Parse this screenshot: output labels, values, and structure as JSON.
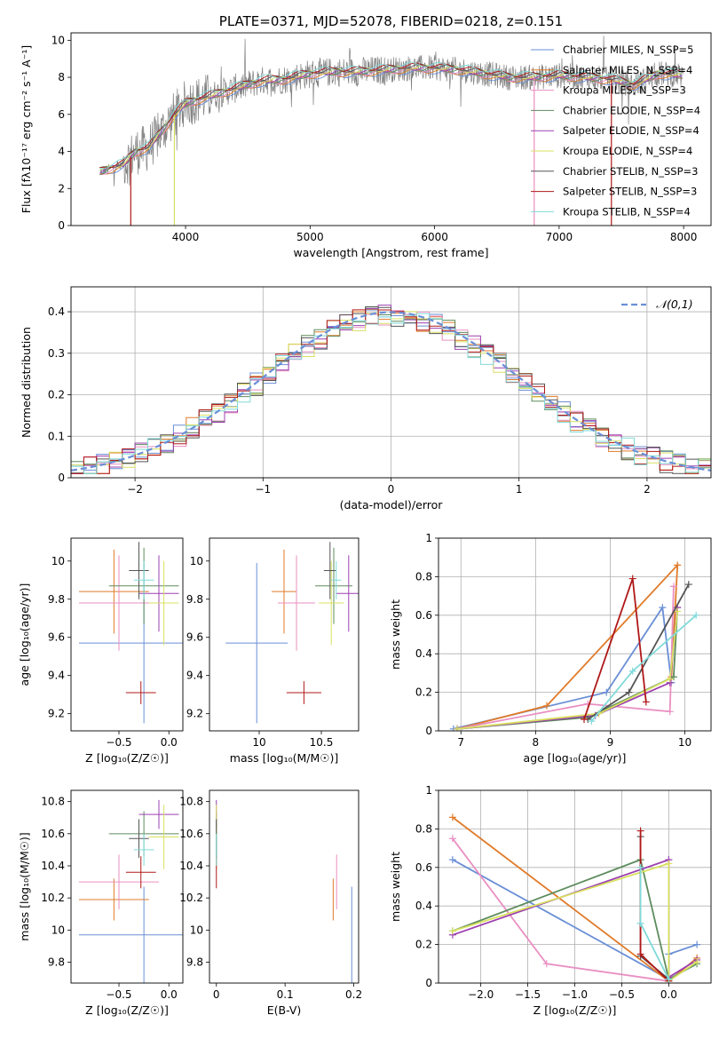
{
  "colors": {
    "chabrier_miles": "#6a8fd6",
    "salpeter_miles": "#e07b2a",
    "kroupa_miles": "#e98fc2",
    "chabrier_elodie": "#5e8c5e",
    "salpeter_elodie": "#9c40b0",
    "kroupa_elodie": "#d8e060",
    "chabrier_stelib": "#555555",
    "salpeter_stelib": "#b01818",
    "kroupa_stelib": "#80dada",
    "data_gray": "#808080",
    "normal_curve": "#6a8fd6"
  },
  "chart_data": [
    {
      "id": "spectrum",
      "type": "line",
      "title": "PLATE=0371, MJD=52078, FIBERID=0218, z=0.151",
      "xlabel": "wavelength [Angstrom, rest frame]",
      "ylabel": "Flux [fλ10⁻¹⁷ erg cm⁻² s⁻¹ A⁻¹]",
      "xlim": [
        3080,
        8220
      ],
      "ylim": [
        0,
        10.4
      ],
      "xticks": [
        4000,
        5000,
        6000,
        7000,
        8000
      ],
      "yticks": [
        0,
        2,
        4,
        6,
        8,
        10
      ],
      "legend_position": "top-right",
      "legend": [
        "Chabrier MILES, N_SSP=5",
        "Salpeter MILES, N_SSP=4",
        "Kroupa MILES, N_SSP=3",
        "Chabrier ELODIE, N_SSP=4",
        "Salpeter ELODIE, N_SSP=4",
        "Kroupa ELODIE, N_SSP=4",
        "Chabrier STELIB, N_SSP=3",
        "Salpeter STELIB, N_SSP=3",
        "Kroupa STELIB, N_SSP=4"
      ],
      "continuum": {
        "wavelength": [
          3310,
          3400,
          3500,
          3600,
          3700,
          3800,
          3900,
          4000,
          4200,
          4400,
          4600,
          4800,
          5000,
          5200,
          5400,
          5600,
          5800,
          6000,
          6200,
          6400,
          6600,
          6800,
          7000,
          7200,
          7400,
          7600,
          7800,
          8000
        ],
        "flux": [
          2.9,
          3.1,
          3.3,
          4.0,
          4.2,
          5.0,
          5.9,
          6.6,
          7.0,
          7.4,
          7.8,
          7.9,
          8.2,
          8.3,
          8.3,
          8.4,
          8.5,
          8.5,
          8.4,
          8.2,
          8.0,
          8.0,
          8.1,
          8.0,
          7.9,
          7.6,
          8.2,
          8.1
        ]
      },
      "dropouts": [
        {
          "wavelength": 3560,
          "series": "salpeter_stelib"
        },
        {
          "wavelength": 3910,
          "series": "kroupa_elodie"
        },
        {
          "wavelength": 6800,
          "series": "kroupa_miles"
        },
        {
          "wavelength": 7420,
          "series": "salpeter_stelib"
        }
      ]
    },
    {
      "id": "residuals",
      "type": "histogram",
      "xlabel": "(data-model)/error",
      "ylabel": "Normed distribution",
      "xlim": [
        -2.5,
        2.5
      ],
      "ylim": [
        0,
        0.46
      ],
      "xticks": [
        -2,
        -1,
        0,
        1,
        2
      ],
      "yticks": [
        0.0,
        0.1,
        0.2,
        0.3,
        0.4
      ],
      "legend": [
        "𝒩(0,1)"
      ],
      "legend_position": "top-right",
      "grid": true,
      "normal": {
        "mean": 0,
        "sigma": 1
      }
    },
    {
      "id": "age_vs_Z",
      "type": "errorbar",
      "xlabel": "Z [log₁₀(Z/Z☉)]",
      "ylabel": "age  [log₁₀(age/yr)]",
      "xlim": [
        -0.98,
        0.14
      ],
      "ylim": [
        9.11,
        10.12
      ],
      "xticks": [
        -0.5,
        0.0
      ],
      "xticklabels": [
        "−0.5",
        "0.0"
      ],
      "yticks": [
        9.2,
        9.4,
        9.6,
        9.8,
        10.0
      ],
      "points": [
        {
          "series": "chabrier_miles",
          "x": -0.25,
          "xerr": 0.65,
          "y": 9.57,
          "yerr": 0.42
        },
        {
          "series": "salpeter_miles",
          "x": -0.55,
          "xerr": 0.35,
          "y": 9.84,
          "yerr": 0.22
        },
        {
          "series": "kroupa_miles",
          "x": -0.5,
          "xerr": 0.4,
          "y": 9.78,
          "yerr": 0.25
        },
        {
          "series": "chabrier_elodie",
          "x": -0.25,
          "xerr": 0.35,
          "y": 9.87,
          "yerr": 0.2
        },
        {
          "series": "salpeter_elodie",
          "x": -0.1,
          "xerr": 0.2,
          "y": 9.83,
          "yerr": 0.2
        },
        {
          "series": "kroupa_elodie",
          "x": -0.05,
          "xerr": 0.15,
          "y": 9.78,
          "yerr": 0.22
        },
        {
          "series": "chabrier_stelib",
          "x": -0.3,
          "xerr": 0.1,
          "y": 9.95,
          "yerr": 0.15
        },
        {
          "series": "salpeter_stelib",
          "x": -0.28,
          "xerr": 0.15,
          "y": 9.31,
          "yerr": 0.06
        },
        {
          "series": "kroupa_stelib",
          "x": -0.25,
          "xerr": 0.1,
          "y": 9.9,
          "yerr": 0.1
        }
      ]
    },
    {
      "id": "age_vs_mass",
      "type": "errorbar",
      "xlabel": "mass [log₁₀(M/M☉)]",
      "ylabel": "",
      "xlim": [
        9.6,
        10.8
      ],
      "ylim": [
        9.11,
        10.12
      ],
      "xticks": [
        10.0,
        10.5
      ],
      "yticks": [
        9.2,
        9.4,
        9.6,
        9.8,
        10.0
      ],
      "points": [
        {
          "series": "chabrier_miles",
          "x": 9.98,
          "xerr": 0.25,
          "y": 9.57,
          "yerr": 0.42
        },
        {
          "series": "salpeter_miles",
          "x": 10.2,
          "xerr": 0.1,
          "y": 9.84,
          "yerr": 0.22
        },
        {
          "series": "kroupa_miles",
          "x": 10.3,
          "xerr": 0.15,
          "y": 9.78,
          "yerr": 0.25
        },
        {
          "series": "chabrier_elodie",
          "x": 10.6,
          "xerr": 0.15,
          "y": 9.87,
          "yerr": 0.2
        },
        {
          "series": "salpeter_elodie",
          "x": 10.72,
          "xerr": 0.1,
          "y": 9.83,
          "yerr": 0.2
        },
        {
          "series": "kroupa_elodie",
          "x": 10.58,
          "xerr": 0.1,
          "y": 9.78,
          "yerr": 0.22
        },
        {
          "series": "chabrier_stelib",
          "x": 10.57,
          "xerr": 0.05,
          "y": 9.95,
          "yerr": 0.15
        },
        {
          "series": "salpeter_stelib",
          "x": 10.36,
          "xerr": 0.14,
          "y": 9.31,
          "yerr": 0.06
        },
        {
          "series": "kroupa_stelib",
          "x": 10.62,
          "xerr": 0.04,
          "y": 9.9,
          "yerr": 0.1
        }
      ]
    },
    {
      "id": "weight_vs_age",
      "type": "line",
      "xlabel": "age  [log₁₀(age/yr)]",
      "ylabel": "mass weight",
      "xlim": [
        6.7,
        10.35
      ],
      "ylim": [
        0,
        1.0
      ],
      "xticks": [
        7,
        8,
        9,
        10
      ],
      "yticks": [
        0.0,
        0.2,
        0.4,
        0.6,
        0.8,
        1.0
      ],
      "series": [
        {
          "key": "chabrier_miles",
          "x": [
            6.9,
            8.95,
            9.7,
            9.82
          ],
          "y": [
            0.01,
            0.2,
            0.64,
            0.25
          ]
        },
        {
          "key": "salpeter_miles",
          "x": [
            6.95,
            8.15,
            9.9,
            9.82
          ],
          "y": [
            0.01,
            0.13,
            0.86,
            0.28
          ]
        },
        {
          "key": "kroupa_miles",
          "x": [
            6.95,
            8.7,
            9.8,
            9.85
          ],
          "y": [
            0.01,
            0.14,
            0.1,
            0.75
          ]
        },
        {
          "key": "chabrier_elodie",
          "x": [
            6.95,
            8.7,
            9.85,
            9.9
          ],
          "y": [
            0.01,
            0.07,
            0.28,
            0.64
          ]
        },
        {
          "key": "salpeter_elodie",
          "x": [
            6.95,
            8.8,
            9.8,
            9.9
          ],
          "y": [
            0.01,
            0.08,
            0.25,
            0.64
          ]
        },
        {
          "key": "kroupa_elodie",
          "x": [
            6.95,
            8.85,
            9.8,
            9.9
          ],
          "y": [
            0.01,
            0.09,
            0.27,
            0.62
          ]
        },
        {
          "key": "chabrier_stelib",
          "x": [
            8.7,
            9.25,
            10.05
          ],
          "y": [
            0.06,
            0.2,
            0.76
          ]
        },
        {
          "key": "salpeter_stelib",
          "x": [
            8.65,
            9.3,
            9.48
          ],
          "y": [
            0.06,
            0.79,
            0.15
          ]
        },
        {
          "key": "kroupa_stelib",
          "x": [
            8.75,
            9.3,
            10.15
          ],
          "y": [
            0.05,
            0.31,
            0.6
          ]
        }
      ]
    },
    {
      "id": "mass_vs_Z",
      "type": "errorbar",
      "xlabel": "Z [log₁₀(Z/Z☉)]",
      "ylabel": "mass [log₁₀(M/M☉)]",
      "xlim": [
        -0.98,
        0.14
      ],
      "ylim": [
        9.67,
        10.87
      ],
      "xticks": [
        -0.5,
        0.0
      ],
      "xticklabels": [
        "−0.5",
        "0.0"
      ],
      "yticks": [
        9.8,
        10.0,
        10.2,
        10.4,
        10.6,
        10.8
      ],
      "points": [
        {
          "series": "chabrier_miles",
          "x": -0.25,
          "xerr": 0.65,
          "y": 9.97,
          "yerr": 0.3
        },
        {
          "series": "salpeter_miles",
          "x": -0.55,
          "xerr": 0.35,
          "y": 10.19,
          "yerr": 0.13
        },
        {
          "series": "kroupa_miles",
          "x": -0.5,
          "xerr": 0.4,
          "y": 10.3,
          "yerr": 0.17
        },
        {
          "series": "chabrier_elodie",
          "x": -0.25,
          "xerr": 0.35,
          "y": 10.6,
          "yerr": 0.14
        },
        {
          "series": "salpeter_elodie",
          "x": -0.1,
          "xerr": 0.2,
          "y": 10.72,
          "yerr": 0.09
        },
        {
          "series": "kroupa_elodie",
          "x": -0.05,
          "xerr": 0.15,
          "y": 10.58,
          "yerr": 0.2
        },
        {
          "series": "chabrier_stelib",
          "x": -0.3,
          "xerr": 0.1,
          "y": 10.57,
          "yerr": 0.12
        },
        {
          "series": "salpeter_stelib",
          "x": -0.28,
          "xerr": 0.15,
          "y": 10.36,
          "yerr": 0.1
        },
        {
          "series": "kroupa_stelib",
          "x": -0.25,
          "xerr": 0.1,
          "y": 10.5,
          "yerr": 0.1
        }
      ]
    },
    {
      "id": "mass_vs_ebv",
      "type": "errorbar",
      "xlabel": "E(B-V)",
      "ylabel": "",
      "xlim": [
        -0.01,
        0.207
      ],
      "ylim": [
        9.67,
        10.87
      ],
      "xticks": [
        0.0,
        0.1,
        0.2
      ],
      "yticks": [
        9.8,
        10.0,
        10.2,
        10.4,
        10.6,
        10.8
      ],
      "points": [
        {
          "series": "chabrier_miles",
          "x": 0.197,
          "xerr": 0,
          "y": 9.97,
          "yerr": 0.3
        },
        {
          "series": "salpeter_miles",
          "x": 0.17,
          "xerr": 0,
          "y": 10.19,
          "yerr": 0.13
        },
        {
          "series": "kroupa_miles",
          "x": 0.175,
          "xerr": 0,
          "y": 10.3,
          "yerr": 0.17
        },
        {
          "series": "chabrier_elodie",
          "x": 0.0,
          "xerr": 0,
          "y": 10.6,
          "yerr": 0.14
        },
        {
          "series": "salpeter_elodie",
          "x": 0.0,
          "xerr": 0,
          "y": 10.72,
          "yerr": 0.09
        },
        {
          "series": "kroupa_elodie",
          "x": 0.0,
          "xerr": 0,
          "y": 10.58,
          "yerr": 0.2
        },
        {
          "series": "chabrier_stelib",
          "x": 0.0,
          "xerr": 0,
          "y": 10.57,
          "yerr": 0.12
        },
        {
          "series": "salpeter_stelib",
          "x": 0.0,
          "xerr": 0,
          "y": 10.36,
          "yerr": 0.1
        },
        {
          "series": "kroupa_stelib",
          "x": 0.0,
          "xerr": 0,
          "y": 10.5,
          "yerr": 0.1
        }
      ]
    },
    {
      "id": "weight_vs_Z",
      "type": "line",
      "xlabel": "Z [log₁₀(Z/Z☉)]",
      "ylabel": "mass weight",
      "xlim": [
        -2.45,
        0.45
      ],
      "ylim": [
        0,
        1.0
      ],
      "xticks": [
        -2.0,
        -1.5,
        -1.0,
        -0.5,
        0.0
      ],
      "xticklabels": [
        "−2.0",
        "−1.5",
        "−1.0",
        "−0.5",
        "0.0"
      ],
      "yticks": [
        0.0,
        0.2,
        0.4,
        0.6,
        0.8,
        1.0
      ],
      "series": [
        {
          "key": "chabrier_miles",
          "x": [
            -2.3,
            0.0,
            0.0,
            0.3
          ],
          "y": [
            0.64,
            0.02,
            0.15,
            0.2
          ]
        },
        {
          "key": "salpeter_miles",
          "x": [
            -2.3,
            0.0,
            0.3
          ],
          "y": [
            0.86,
            0.01,
            0.13
          ]
        },
        {
          "key": "kroupa_miles",
          "x": [
            -2.3,
            -1.3,
            0.0
          ],
          "y": [
            0.75,
            0.1,
            0.01
          ]
        },
        {
          "key": "chabrier_elodie",
          "x": [
            -2.3,
            -0.3,
            0.0,
            0.3
          ],
          "y": [
            0.27,
            0.64,
            0.02,
            0.1
          ]
        },
        {
          "key": "salpeter_elodie",
          "x": [
            -2.3,
            0.0,
            0.0,
            0.3
          ],
          "y": [
            0.25,
            0.64,
            0.03,
            0.12
          ]
        },
        {
          "key": "kroupa_elodie",
          "x": [
            -2.3,
            0.0,
            0.0,
            0.3
          ],
          "y": [
            0.27,
            0.62,
            0.01,
            0.11
          ]
        },
        {
          "key": "chabrier_stelib",
          "x": [
            -0.3,
            -0.3,
            0.0
          ],
          "y": [
            0.76,
            0.14,
            0.02
          ]
        },
        {
          "key": "salpeter_stelib",
          "x": [
            -0.3,
            -0.3,
            0.0
          ],
          "y": [
            0.79,
            0.15,
            0.01
          ]
        },
        {
          "key": "kroupa_stelib",
          "x": [
            -0.3,
            -0.3,
            0.0
          ],
          "y": [
            0.6,
            0.31,
            0.02
          ]
        }
      ]
    }
  ]
}
